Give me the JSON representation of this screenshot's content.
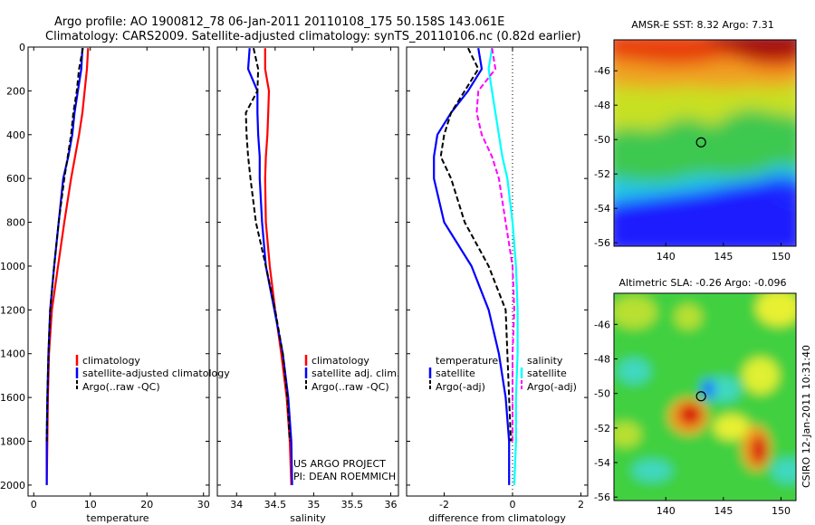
{
  "figure": {
    "title_line1": "Argo profile: AO 1900812_78 06-Jan-2011 20110108_175 50.158S 143.061E",
    "title_line2": "Climatology: CARS2009. Satellite-adjusted climatology: synTS_20110106.nc (0.82d earlier)",
    "credit_project": "US ARGO PROJECT",
    "credit_pi": "PI: DEAN ROEMMICH",
    "timestamp": "CSIRO 12-Jan-2011 10:31:40"
  },
  "colors": {
    "climatology": "#ff0000",
    "satellite": "#0000ff",
    "argo": "#000000",
    "salinity_satellite": "#00ffff",
    "salinity_argo": "#ff00ff"
  },
  "chart_data": [
    {
      "id": "temperature",
      "type": "line",
      "xlabel": "temperature",
      "ylabel": "",
      "xlim": [
        -1,
        31
      ],
      "ylim": [
        2050,
        0
      ],
      "xticks": [
        "0",
        "10",
        "20",
        "30"
      ],
      "xtick_values": [
        0,
        10,
        20,
        30
      ],
      "yticks": [
        "0",
        "200",
        "400",
        "600",
        "800",
        "1000",
        "1200",
        "1400",
        "1600",
        "1800",
        "2000"
      ],
      "ytick_values": [
        0,
        200,
        400,
        600,
        800,
        1000,
        1200,
        1400,
        1600,
        1800,
        2000
      ],
      "legend": [
        "climatology",
        "satellite-adjusted climatology",
        "Argo(..raw -QC)"
      ],
      "series": [
        {
          "name": "climatology",
          "color": "#ff0000",
          "dash": false,
          "x": [
            9.6,
            9.4,
            9.0,
            8.6,
            8.0,
            7.3,
            6.6,
            5.4,
            4.3,
            3.2,
            2.7,
            2.5,
            2.4,
            2.3
          ],
          "y": [
            5,
            100,
            200,
            300,
            400,
            500,
            600,
            800,
            1000,
            1200,
            1400,
            1600,
            1800,
            2000
          ]
        },
        {
          "name": "satellite-adjusted climatology",
          "color": "#0000ff",
          "dash": false,
          "x": [
            8.6,
            8.4,
            7.8,
            7.2,
            6.8,
            6.1,
            5.2,
            4.4,
            3.6,
            2.9,
            2.6,
            2.4,
            2.3,
            2.3
          ],
          "y": [
            5,
            100,
            200,
            300,
            400,
            500,
            600,
            800,
            1000,
            1200,
            1400,
            1600,
            1800,
            2000
          ]
        },
        {
          "name": "Argo(..raw -QC)",
          "color": "#000000",
          "dash": true,
          "x": [
            8.7,
            8.0,
            7.6,
            7.0,
            6.6,
            6.0,
            5.4,
            4.4,
            3.6,
            2.9,
            2.6,
            2.4,
            2.3
          ],
          "y": [
            5,
            100,
            200,
            300,
            400,
            500,
            600,
            800,
            1000,
            1200,
            1400,
            1600,
            1800
          ]
        }
      ]
    },
    {
      "id": "salinity",
      "type": "line",
      "xlabel": "salinity",
      "ylabel": "",
      "xlim": [
        33.75,
        36.1
      ],
      "ylim": [
        2050,
        0
      ],
      "xticks": [
        "34",
        "34.5",
        "35",
        "35.5",
        "36"
      ],
      "xtick_values": [
        34,
        34.5,
        35,
        35.5,
        36
      ],
      "yticks": [],
      "legend": [
        "climatology",
        "satellite adj. clim.",
        "Argo(..raw -QC)"
      ],
      "series": [
        {
          "name": "climatology",
          "color": "#ff0000",
          "dash": false,
          "x": [
            34.37,
            34.37,
            34.42,
            34.41,
            34.4,
            34.38,
            34.37,
            34.38,
            34.43,
            34.5,
            34.58,
            34.65,
            34.69,
            34.71
          ],
          "y": [
            5,
            100,
            200,
            300,
            400,
            500,
            600,
            800,
            1000,
            1200,
            1400,
            1600,
            1800,
            2000
          ]
        },
        {
          "name": "satellite adj. clim.",
          "color": "#0000ff",
          "dash": false,
          "x": [
            34.17,
            34.15,
            34.27,
            34.27,
            34.28,
            34.3,
            34.3,
            34.33,
            34.38,
            34.49,
            34.6,
            34.67,
            34.71,
            34.72
          ],
          "y": [
            5,
            100,
            200,
            300,
            400,
            500,
            600,
            800,
            1000,
            1200,
            1400,
            1600,
            1800,
            2000
          ]
        },
        {
          "name": "Argo(..raw -QC)",
          "color": "#000000",
          "dash": true,
          "x": [
            34.22,
            34.28,
            34.27,
            34.12,
            34.13,
            34.15,
            34.18,
            34.25,
            34.38,
            34.5,
            34.6,
            34.66,
            34.69
          ],
          "y": [
            5,
            100,
            200,
            300,
            400,
            500,
            600,
            800,
            1000,
            1200,
            1400,
            1600,
            1800
          ]
        }
      ]
    },
    {
      "id": "difference",
      "type": "line",
      "xlabel": "difference from climatology",
      "ylabel": "",
      "xlim": [
        -3.1,
        2.2
      ],
      "ylim": [
        2050,
        0
      ],
      "xticks": [
        "-2",
        "0",
        "2"
      ],
      "xtick_values": [
        -2,
        0,
        2
      ],
      "yticks": [],
      "legend_left_title": "temperature",
      "legend_left": [
        "satellite",
        "Argo(-adj)"
      ],
      "legend_right_title": "salinity",
      "legend_right": [
        "satellite",
        "Argo(-adj)"
      ],
      "series": [
        {
          "name": "temperature satellite",
          "color": "#0000ff",
          "dash": false,
          "x": [
            -1.0,
            -0.9,
            -1.3,
            -1.8,
            -2.2,
            -2.3,
            -2.3,
            -2.0,
            -1.2,
            -0.7,
            -0.4,
            -0.2,
            -0.1,
            -0.1
          ],
          "y": [
            5,
            100,
            200,
            300,
            400,
            500,
            600,
            800,
            1000,
            1200,
            1400,
            1600,
            1800,
            2000
          ]
        },
        {
          "name": "temperature Argo(-adj)",
          "color": "#000000",
          "dash": true,
          "x": [
            -1.3,
            -1.0,
            -1.4,
            -1.8,
            -2.0,
            -2.1,
            -1.8,
            -1.4,
            -0.7,
            -0.2,
            -0.15,
            -0.1,
            -0.05
          ],
          "y": [
            5,
            100,
            200,
            300,
            400,
            500,
            600,
            800,
            1000,
            1200,
            1400,
            1600,
            1800
          ]
        },
        {
          "name": "salinity satellite",
          "color": "#00ffff",
          "dash": false,
          "x": [
            -0.6,
            -0.7,
            -0.6,
            -0.5,
            -0.4,
            -0.3,
            -0.15,
            0.0,
            0.1,
            0.15,
            0.15,
            0.1,
            0.1,
            0.05
          ],
          "y": [
            5,
            100,
            200,
            300,
            400,
            500,
            600,
            800,
            1000,
            1200,
            1400,
            1600,
            1800,
            2000
          ]
        },
        {
          "name": "salinity Argo(-adj)",
          "color": "#ff00ff",
          "dash": true,
          "x": [
            -0.6,
            -0.5,
            -1.0,
            -1.05,
            -0.9,
            -0.6,
            -0.4,
            -0.2,
            0.0,
            0.05,
            0.0,
            0.0,
            0.0
          ],
          "y": [
            5,
            100,
            200,
            300,
            400,
            500,
            600,
            800,
            1000,
            1200,
            1400,
            1600,
            1800
          ]
        }
      ]
    },
    {
      "id": "sst-map",
      "type": "heatmap",
      "title": "AMSR-E SST: 8.32 Argo: 7.31",
      "xlim": [
        135.5,
        151.3
      ],
      "ylim": [
        -56.2,
        -44.2
      ],
      "xticks": [
        "140",
        "145",
        "150"
      ],
      "xtick_values": [
        140,
        145,
        150
      ],
      "yticks": [
        "-46",
        "-48",
        "-50",
        "-52",
        "-54",
        "-56"
      ],
      "ytick_values": [
        -46,
        -48,
        -50,
        -52,
        -54,
        -56
      ],
      "float_position": {
        "lon": 143.06,
        "lat": -50.16
      }
    },
    {
      "id": "sla-map",
      "type": "heatmap",
      "title": "Altimetric SLA: -0.26 Argo: -0.096",
      "xlim": [
        135.5,
        151.3
      ],
      "ylim": [
        -56.2,
        -44.2
      ],
      "xticks": [
        "140",
        "145",
        "150"
      ],
      "xtick_values": [
        140,
        145,
        150
      ],
      "yticks": [
        "-46",
        "-48",
        "-50",
        "-52",
        "-54",
        "-56"
      ],
      "ytick_values": [
        -46,
        -48,
        -50,
        -52,
        -54,
        -56
      ],
      "float_position": {
        "lon": 143.06,
        "lat": -50.16
      }
    }
  ]
}
